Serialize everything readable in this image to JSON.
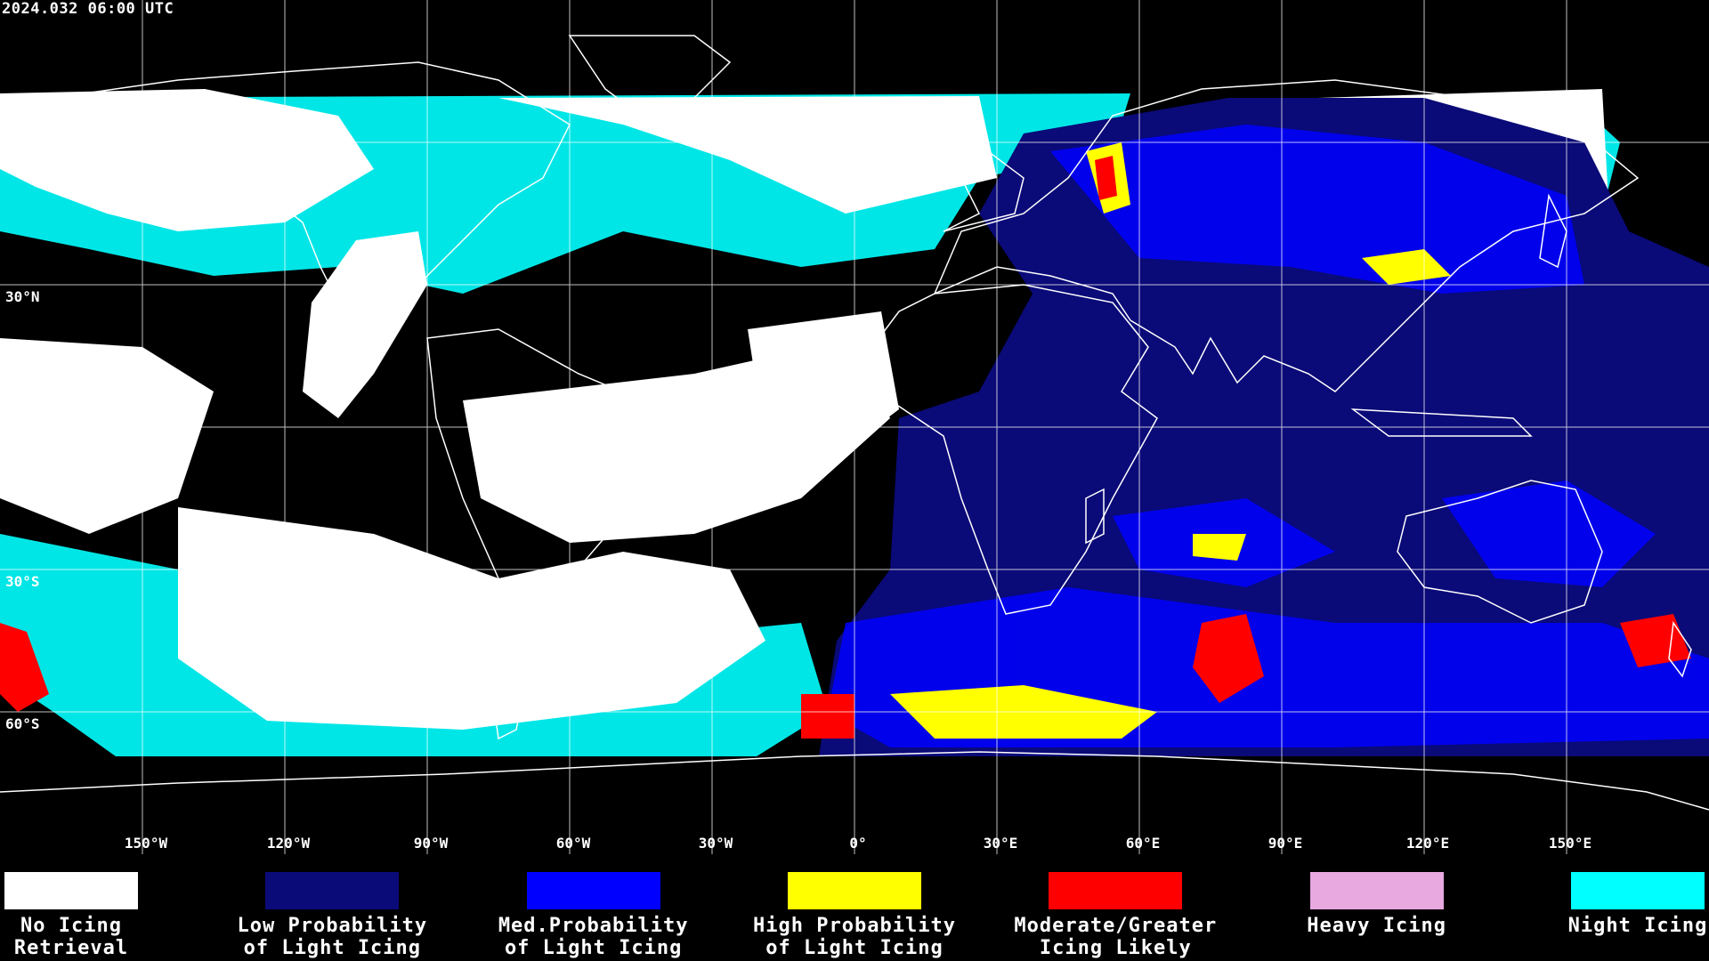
{
  "timestamp": "2024.032 06:00 UTC",
  "map": {
    "longitude_labels": [
      "150°W",
      "120°W",
      "90°W",
      "60°W",
      "30°W",
      "0°",
      "30°E",
      "60°E",
      "90°E",
      "120°E",
      "150°E"
    ],
    "longitude_values": [
      -150,
      -120,
      -90,
      -60,
      -30,
      0,
      30,
      60,
      90,
      120,
      150
    ],
    "latitude_labels": [
      "30°N",
      "30°S",
      "60°S"
    ],
    "latitude_values": [
      30,
      -30,
      -60
    ],
    "colors": {
      "background": "#000000",
      "grid": "#ffffff",
      "coastline": "#ffffff"
    }
  },
  "legend": {
    "items": [
      {
        "label": "No Icing\nRetrieval",
        "color": "#ffffff"
      },
      {
        "label": "Low Probability\nof Light Icing",
        "color": "#0a0a78"
      },
      {
        "label": "Med.Probability\nof Light Icing",
        "color": "#0000ff"
      },
      {
        "label": "High Probability\nof Light Icing",
        "color": "#ffff00"
      },
      {
        "label": "Moderate/Greater\nIcing Likely",
        "color": "#ff0000"
      },
      {
        "label": "Heavy Icing",
        "color": "#e8a8e0"
      },
      {
        "label": "Night Icing",
        "color": "#00ffff"
      }
    ]
  }
}
